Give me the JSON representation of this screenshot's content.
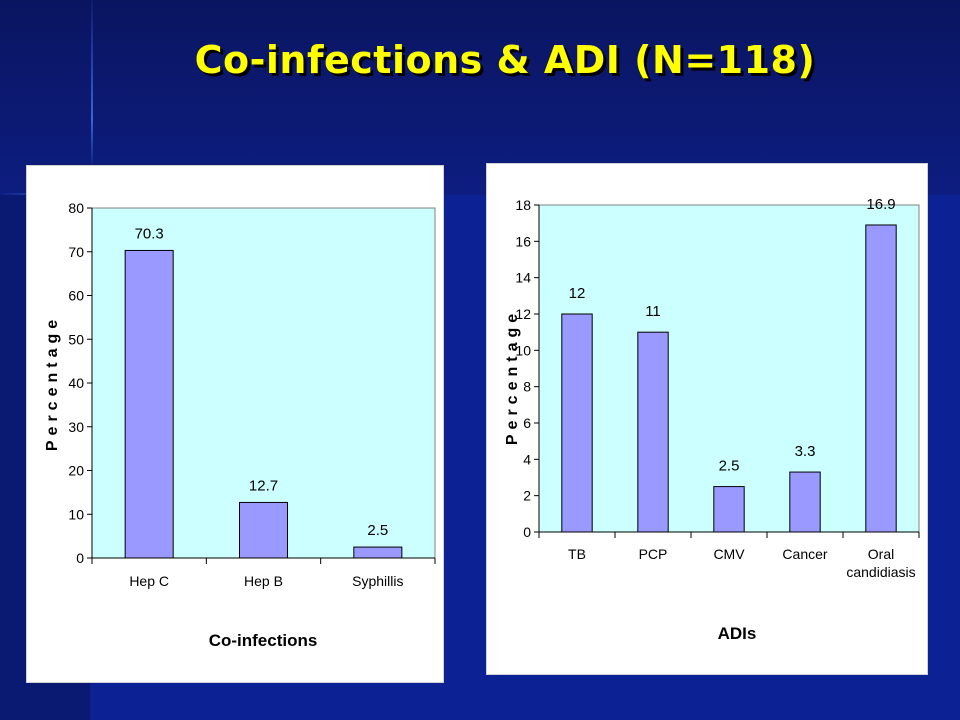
{
  "slide": {
    "title": "Co-infections & ADI (N=118)"
  },
  "colors": {
    "background": "#0c2194",
    "title": "#ffff00",
    "plot_area": "#ccffff",
    "bar_fill": "#9999ff",
    "bar_stroke": "#000000"
  },
  "chart_data": [
    {
      "type": "bar",
      "categories": [
        "Hep C",
        "Hep B",
        "Syphillis"
      ],
      "values": [
        70.3,
        12.7,
        2.5
      ],
      "data_labels": [
        "70.3",
        "12.7",
        "2.5"
      ],
      "xlabel": "Co-infections",
      "ylabel": "Percentage",
      "ylim": [
        0,
        80
      ],
      "yticks": [
        0,
        10,
        20,
        30,
        40,
        50,
        60,
        70,
        80
      ],
      "grid": false,
      "legend": "none"
    },
    {
      "type": "bar",
      "categories": [
        "TB",
        "PCP",
        "CMV",
        "Cancer",
        "Oral candidiasis"
      ],
      "category_lines": [
        [
          "TB"
        ],
        [
          "PCP"
        ],
        [
          "CMV"
        ],
        [
          "Cancer"
        ],
        [
          "Oral",
          "candidiasis"
        ]
      ],
      "values": [
        12,
        11,
        2.5,
        3.3,
        16.9
      ],
      "data_labels": [
        "12",
        "11",
        "2.5",
        "3.3",
        "16.9"
      ],
      "xlabel": "ADIs",
      "ylabel": "Percentage",
      "ylim": [
        0,
        18
      ],
      "yticks": [
        0,
        2,
        4,
        6,
        8,
        10,
        12,
        14,
        16,
        18
      ],
      "grid": false,
      "legend": "none"
    }
  ]
}
